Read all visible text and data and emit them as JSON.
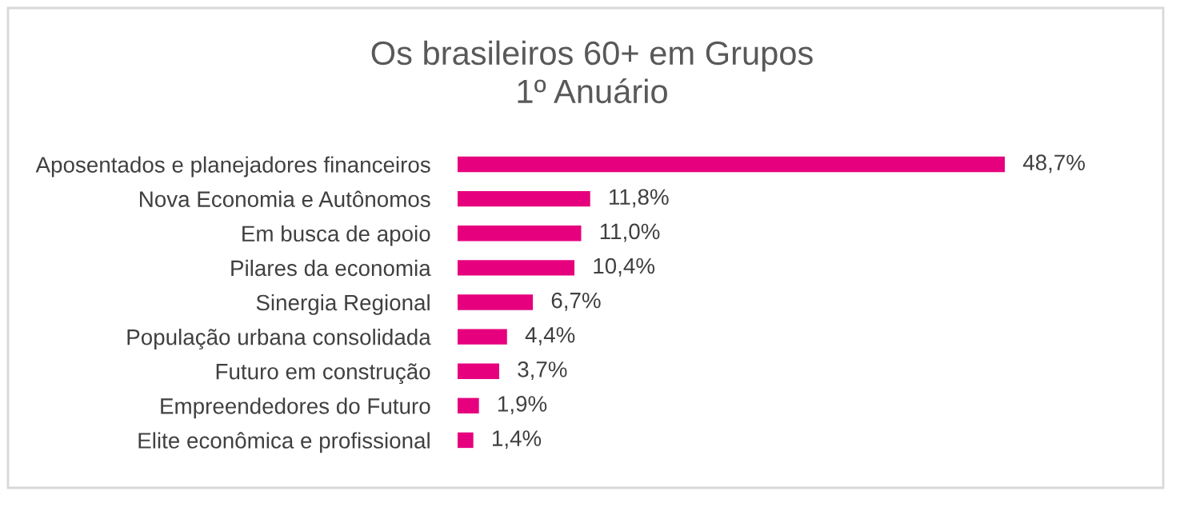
{
  "chart_data": {
    "type": "bar",
    "orientation": "horizontal",
    "title": "Os brasileiros 60+ em Grupos\n1º Anuário",
    "categories": [
      "Aposentados e planejadores financeiros",
      "Nova Economia e Autônomos",
      "Em busca de apoio",
      "Pilares da economia",
      "Sinergia Regional",
      "População urbana consolidada",
      "Futuro em construção",
      "Empreendedores do Futuro",
      "Elite econômica e profissional"
    ],
    "values": [
      48.7,
      11.8,
      11.0,
      10.4,
      6.7,
      4.4,
      3.7,
      1.9,
      1.4
    ],
    "value_labels": [
      "48,7%",
      "11,8%",
      "11,0%",
      "10,4%",
      "6,7%",
      "4,4%",
      "3,7%",
      "1,9%",
      "1,4%"
    ],
    "color": "#e6007e",
    "grid": false,
    "legend": false
  }
}
